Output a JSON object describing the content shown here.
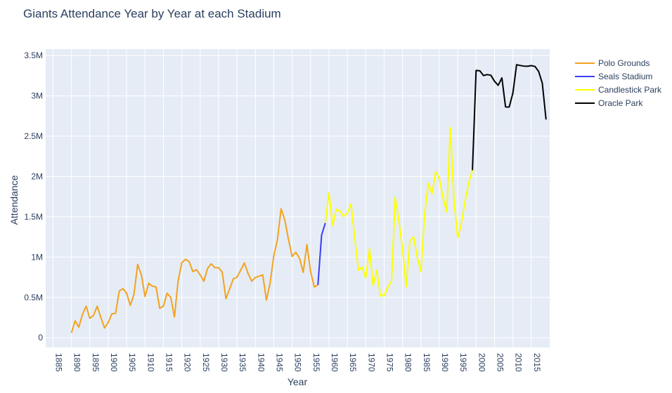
{
  "chart_data": {
    "type": "line",
    "title": "Giants Attendance Year by Year at each Stadium",
    "xlabel": "Year",
    "ylabel": "Attendance",
    "xlim": [
      1883,
      2020
    ],
    "ylim": [
      -120000,
      3580000
    ],
    "grid": true,
    "legend_position": "top-right",
    "plot_bg": "#e5ecf6",
    "x_ticks": [
      1885,
      1890,
      1895,
      1900,
      1905,
      1910,
      1915,
      1920,
      1925,
      1930,
      1935,
      1940,
      1945,
      1950,
      1955,
      1960,
      1965,
      1970,
      1975,
      1980,
      1985,
      1990,
      1995,
      2000,
      2005,
      2010,
      2015
    ],
    "x_tick_labels": [
      "1885",
      "1890",
      "1895",
      "1900",
      "1905",
      "1910",
      "1915",
      "1920",
      "1925",
      "1930",
      "1935",
      "1940",
      "1945",
      "1950",
      "1955",
      "1960",
      "1965",
      "1970",
      "1975",
      "1980",
      "1985",
      "1990",
      "1995",
      "2000",
      "2005",
      "2010",
      "2015"
    ],
    "y_ticks": [
      0,
      500000,
      1000000,
      1500000,
      2000000,
      2500000,
      3000000,
      3500000
    ],
    "y_tick_labels": [
      "0",
      "0.5M",
      "1M",
      "1.5M",
      "2M",
      "2.5M",
      "3M",
      "3.5M"
    ],
    "series": [
      {
        "name": "Polo Grounds",
        "color": "#f4a21e",
        "x": [
          1890,
          1891,
          1892,
          1893,
          1894,
          1895,
          1896,
          1897,
          1898,
          1899,
          1900,
          1901,
          1902,
          1903,
          1904,
          1905,
          1906,
          1907,
          1908,
          1909,
          1910,
          1911,
          1912,
          1913,
          1914,
          1915,
          1916,
          1917,
          1918,
          1919,
          1920,
          1921,
          1922,
          1923,
          1924,
          1925,
          1926,
          1927,
          1928,
          1929,
          1930,
          1931,
          1932,
          1933,
          1934,
          1935,
          1936,
          1937,
          1938,
          1939,
          1940,
          1941,
          1942,
          1943,
          1944,
          1945,
          1946,
          1947,
          1948,
          1949,
          1950,
          1951,
          1952,
          1953,
          1954,
          1955,
          1956,
          1957
        ],
        "y": [
          60000,
          210000,
          130000,
          290000,
          390000,
          240000,
          275000,
          390000,
          250000,
          121000,
          190000,
          297000,
          302000,
          579000,
          609000,
          552000,
          402000,
          538000,
          910000,
          783000,
          511000,
          675000,
          638000,
          630000,
          364000,
          391000,
          552000,
          500000,
          257000,
          708000,
          929000,
          973000,
          945000,
          820000,
          844000,
          779000,
          700000,
          859000,
          917000,
          869000,
          868000,
          812000,
          484000,
          604000,
          731000,
          749000,
          837000,
          927000,
          799000,
          702000,
          747000,
          763000,
          779000,
          466000,
          674000,
          1016000,
          1219000,
          1600000,
          1460000,
          1218000,
          1008000,
          1059000,
          985000,
          811000,
          1155000,
          824000,
          630000,
          654000
        ]
      },
      {
        "name": "Seals Stadium",
        "color": "#3a3ef0",
        "x": [
          1958,
          1959
        ],
        "y": [
          1273000,
          1423000
        ]
      },
      {
        "name": "Candlestick Park",
        "color": "#ffff00",
        "x": [
          1960,
          1961,
          1962,
          1963,
          1964,
          1965,
          1966,
          1967,
          1968,
          1969,
          1970,
          1971,
          1972,
          1973,
          1974,
          1975,
          1976,
          1977,
          1978,
          1979,
          1980,
          1981,
          1982,
          1983,
          1984,
          1985,
          1986,
          1987,
          1988,
          1989,
          1990,
          1991,
          1992,
          1993,
          1994,
          1995,
          1996,
          1997,
          1998,
          1999
        ],
        "y": [
          1795000,
          1391000,
          1593000,
          1572000,
          1504000,
          1547000,
          1658000,
          1242000,
          837000,
          874000,
          741000,
          1106000,
          648000,
          835000,
          520000,
          522000,
          626000,
          701000,
          1741000,
          1457000,
          1096000,
          632000,
          1201000,
          1252000,
          1001000,
          818000,
          1529000,
          1917000,
          1786000,
          2060000,
          1975000,
          1737000,
          1561000,
          2606000,
          1704000,
          1241000,
          1413000,
          1690000,
          1925000,
          2078000
        ]
      },
      {
        "name": "Oracle Park",
        "color": "#000000",
        "x": [
          2000,
          2001,
          2002,
          2003,
          2004,
          2005,
          2006,
          2007,
          2008,
          2009,
          2010,
          2011,
          2012,
          2013,
          2014,
          2015,
          2016,
          2017,
          2018,
          2019
        ],
        "y": [
          3315000,
          3311000,
          3253000,
          3264000,
          3256000,
          3181000,
          3131000,
          3223000,
          2863000,
          2862000,
          3037000,
          3387000,
          3377000,
          3369000,
          3368000,
          3375000,
          3365000,
          3303000,
          3157000,
          2707000
        ]
      }
    ]
  }
}
